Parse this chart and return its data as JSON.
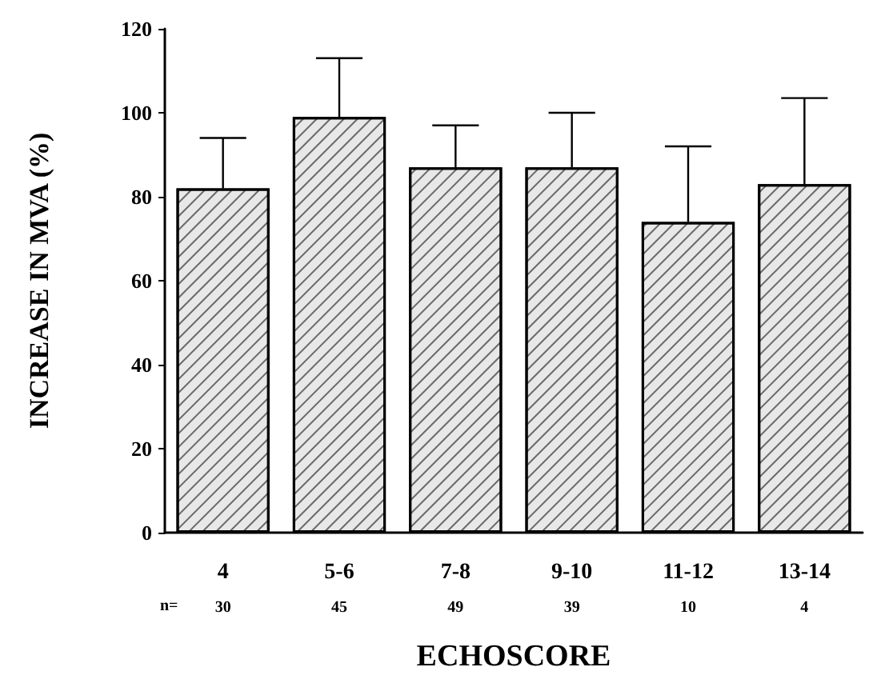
{
  "chart_data": {
    "type": "bar",
    "xlabel": "ECHOSCORE",
    "ylabel": "INCREASE IN MVA (%)",
    "categories": [
      "4",
      "5-6",
      "7-8",
      "9-10",
      "11-12",
      "13-14"
    ],
    "values": [
      82,
      99,
      87,
      87,
      74,
      83
    ],
    "errors": [
      [
        82,
        94
      ],
      [
        99,
        113
      ],
      [
        87,
        97
      ],
      [
        87,
        100
      ],
      [
        74,
        92
      ],
      [
        83,
        103.5
      ]
    ],
    "color": "#e8e8e8",
    "ylim": [
      0,
      120
    ],
    "yticks": [
      0,
      20,
      40,
      60,
      80,
      100,
      120
    ],
    "grid": false,
    "annotations": [
      "n=",
      "30",
      "45",
      "49",
      "39",
      "10",
      "4"
    ]
  }
}
